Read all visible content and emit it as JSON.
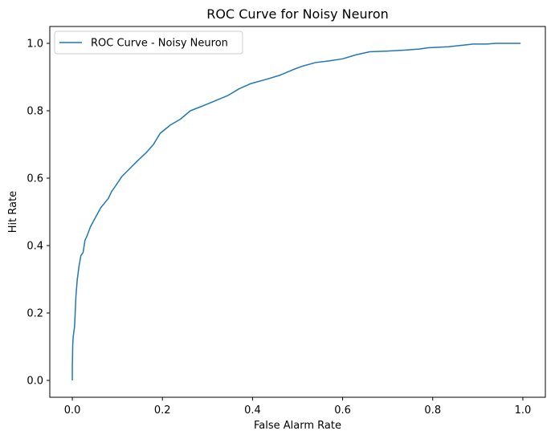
{
  "chart_data": {
    "type": "line",
    "title": "ROC Curve for Noisy Neuron",
    "xlabel": "False Alarm Rate",
    "ylabel": "Hit Rate",
    "xlim": [
      -0.05,
      1.05
    ],
    "ylim": [
      -0.05,
      1.05
    ],
    "xticks": [
      0.0,
      0.2,
      0.4,
      0.6,
      0.8,
      1.0
    ],
    "xtick_labels": [
      "0.0",
      "0.2",
      "0.4",
      "0.6",
      "0.8",
      "1.0"
    ],
    "yticks": [
      0.0,
      0.2,
      0.4,
      0.6,
      0.8,
      1.0
    ],
    "ytick_labels": [
      "0.0",
      "0.2",
      "0.4",
      "0.6",
      "0.8",
      "1.0"
    ],
    "grid": false,
    "legend_position": "upper left",
    "series": [
      {
        "name": "ROC Curve - Noisy Neuron",
        "color": "#1f77b4",
        "x": [
          0.0,
          0.0,
          0.001,
          0.002,
          0.005,
          0.008,
          0.011,
          0.015,
          0.019,
          0.024,
          0.028,
          0.033,
          0.04,
          0.05,
          0.063,
          0.08,
          0.087,
          0.095,
          0.11,
          0.125,
          0.145,
          0.165,
          0.18,
          0.195,
          0.218,
          0.24,
          0.262,
          0.3,
          0.345,
          0.37,
          0.395,
          0.43,
          0.46,
          0.49,
          0.51,
          0.54,
          0.57,
          0.6,
          0.63,
          0.66,
          0.7,
          0.74,
          0.77,
          0.79,
          0.835,
          0.87,
          0.89,
          0.92,
          0.94,
          0.97,
          0.995
        ],
        "y": [
          0.0,
          0.04,
          0.11,
          0.13,
          0.16,
          0.25,
          0.3,
          0.34,
          0.37,
          0.38,
          0.415,
          0.43,
          0.455,
          0.48,
          0.512,
          0.54,
          0.56,
          0.575,
          0.605,
          0.625,
          0.652,
          0.677,
          0.7,
          0.733,
          0.758,
          0.775,
          0.8,
          0.82,
          0.845,
          0.865,
          0.88,
          0.893,
          0.905,
          0.922,
          0.932,
          0.943,
          0.948,
          0.954,
          0.966,
          0.975,
          0.977,
          0.98,
          0.983,
          0.987,
          0.99,
          0.995,
          0.998,
          0.998,
          1.0,
          1.0,
          1.0
        ]
      }
    ]
  }
}
